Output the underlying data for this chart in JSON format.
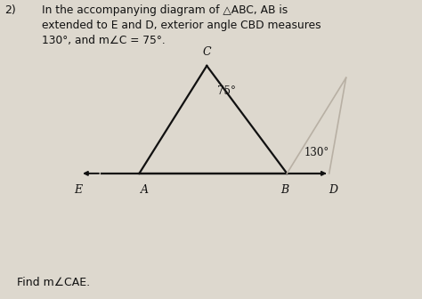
{
  "bg_color": "#ddd8ce",
  "line_color": "#111111",
  "faded_color": "#b8b0a4",
  "text_color": "#111111",
  "title_line1": "In the accompanying diagram of △ABC, AB is",
  "title_line2": "extended to E and D, exterior angle CBD measures",
  "title_line3": "130°, and m∠C = 75°.",
  "num_label": "2)",
  "find_text": "Find m∠CAE.",
  "angle_C_label": "75°",
  "angle_B_label": "130°",
  "label_A": "A",
  "label_B": "B",
  "label_C": "C",
  "label_D": "D",
  "label_E": "E",
  "A": [
    0.33,
    0.42
  ],
  "B": [
    0.68,
    0.42
  ],
  "C": [
    0.49,
    0.78
  ],
  "E": [
    0.19,
    0.42
  ],
  "D": [
    0.78,
    0.42
  ],
  "ghost_C": [
    0.82,
    0.74
  ],
  "ghost_B": [
    0.68,
    0.42
  ],
  "ghost_D": [
    0.78,
    0.42
  ]
}
